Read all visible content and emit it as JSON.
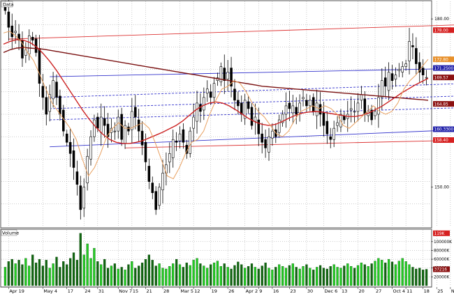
{
  "colors": {
    "background": "#ffffff",
    "grid": "#9a9a9a",
    "candle": "#000000",
    "channel_blue": "#3333cc",
    "channel_red": "#dd3333",
    "ma_long": "#7a1010",
    "ma_mid": "#cc2222",
    "ma_short": "#e8a060",
    "volume_up": "#22cc22",
    "volume_down": "#116611",
    "tag_red": "#d62020",
    "tag_dark": "#8b1010",
    "tag_blue": "#2222aa",
    "tag_orange": "#e8902a"
  },
  "chart_data": [
    {
      "type": "candlestick",
      "title": "",
      "pane_label": "Data",
      "ylim": [
        143,
        183
      ],
      "yticks": [
        {
          "value": 180,
          "label": "180.00"
        },
        {
          "value": 150,
          "label": "150.00"
        }
      ],
      "price_tags": [
        {
          "value": 178.0,
          "label": "178.00",
          "color": "tag_red"
        },
        {
          "value": 172.8,
          "label": "172.80",
          "color": "tag_orange"
        },
        {
          "value": 171.25,
          "label": "171.2500",
          "color": "tag_blue"
        },
        {
          "value": 169.57,
          "label": "169.57",
          "color": "tag_dark"
        },
        {
          "value": 164.85,
          "label": "164.85",
          "color": "tag_dark"
        },
        {
          "value": 160.33,
          "label": "160.3300",
          "color": "tag_blue"
        },
        {
          "value": 158.4,
          "label": "158.40",
          "color": "tag_red"
        }
      ],
      "channels": [
        {
          "name": "upper-red",
          "color": "channel_red",
          "from": [
            1,
            176.4
          ],
          "to": [
            135,
            179.0
          ],
          "dashed": false
        },
        {
          "name": "upper-blue",
          "color": "channel_blue",
          "from": [
            13,
            169.7
          ],
          "to": [
            135,
            171.2
          ],
          "dashed": false
        },
        {
          "name": "mid-upper-dash",
          "color": "channel_blue",
          "from": [
            13,
            166.0
          ],
          "to": [
            135,
            168.5
          ],
          "dashed": true
        },
        {
          "name": "mid-dash",
          "color": "channel_blue",
          "from": [
            13,
            164.0
          ],
          "to": [
            135,
            166.3
          ],
          "dashed": true
        },
        {
          "name": "mid-lower-dash",
          "color": "channel_blue",
          "from": [
            13,
            162.0
          ],
          "to": [
            135,
            164.2
          ],
          "dashed": true
        },
        {
          "name": "lower-blue",
          "color": "channel_blue",
          "from": [
            13,
            157.2
          ],
          "to": [
            135,
            160.3
          ],
          "dashed": false
        },
        {
          "name": "lower-red",
          "color": "channel_red",
          "from": [
            35,
            157.0
          ],
          "to": [
            135,
            158.4
          ],
          "dashed": false
        }
      ],
      "series": [
        {
          "key": "close",
          "values": [
            181.5,
            178.5,
            176.8,
            177.8,
            176.2,
            173.0,
            174.5,
            177.0,
            176.2,
            174.0,
            168.5,
            166.0,
            163.0,
            166.5,
            169.0,
            166.0,
            163.0,
            160.0,
            158.0,
            156.0,
            153.5,
            150.5,
            146.0,
            150.0,
            155.5,
            159.0,
            162.0,
            160.5,
            162.5,
            161.0,
            159.0,
            160.5,
            160.0,
            162.5,
            158.5,
            161.0,
            160.0,
            163.5,
            162.5,
            160.0,
            157.5,
            154.5,
            151.0,
            149.0,
            146.0,
            150.0,
            152.5,
            154.0,
            156.0,
            158.5,
            158.0,
            159.5,
            158.0,
            156.0,
            160.0,
            162.5,
            165.0,
            163.5,
            166.0,
            167.5,
            166.0,
            168.5,
            169.5,
            171.5,
            169.0,
            170.5,
            168.0,
            165.5,
            164.5,
            163.0,
            165.5,
            164.0,
            161.0,
            162.5,
            159.5,
            158.0,
            157.0,
            159.0,
            160.0,
            159.0,
            162.0,
            163.0,
            164.5,
            164.0,
            164.5,
            163.0,
            165.0,
            166.0,
            164.5,
            165.5,
            163.5,
            165.0,
            163.0,
            161.0,
            159.5,
            158.5,
            160.5,
            161.5,
            163.0,
            162.0,
            163.0,
            164.0,
            163.5,
            165.0,
            166.5,
            163.0,
            163.5,
            162.0,
            163.5,
            166.0,
            169.0,
            168.0,
            170.5,
            169.0,
            170.0,
            171.0,
            171.5,
            172.0,
            176.0,
            175.0,
            172.0,
            170.5,
            170.0,
            169.57
          ]
        },
        {
          "key": "ma_long",
          "color": "ma_long",
          "values": [
            174.0,
            174.5,
            174.8,
            174.9,
            174.8,
            174.7,
            174.6,
            174.4,
            174.2,
            174.0,
            173.8,
            173.6,
            173.4,
            173.2,
            173.0,
            172.8,
            172.6,
            172.4,
            172.2,
            172.0,
            171.8,
            171.6,
            171.4,
            171.2,
            171.0,
            170.8,
            170.6,
            170.4,
            170.2,
            170.0,
            169.8,
            169.6,
            169.4,
            169.2,
            169.0,
            168.8,
            168.6,
            168.4,
            168.2,
            168.0,
            167.9,
            167.8,
            167.7,
            167.6,
            167.5,
            167.4,
            167.3,
            167.2,
            167.1,
            167.0,
            166.9,
            166.8,
            166.7,
            166.6,
            166.5,
            166.4,
            166.3,
            166.2,
            166.1,
            166.0,
            165.9,
            165.8,
            165.7,
            165.6,
            165.5
          ]
        },
        {
          "key": "ma_mid",
          "color": "ma_mid",
          "values": [
            175.5,
            176.0,
            176.3,
            176.2,
            175.8,
            175.0,
            173.8,
            172.4,
            170.8,
            169.0,
            167.2,
            165.4,
            163.6,
            162.0,
            160.6,
            159.4,
            158.5,
            158.0,
            157.8,
            157.8,
            158.0,
            158.3,
            158.8,
            159.3,
            159.8,
            160.4,
            161.0,
            161.8,
            162.8,
            163.8,
            164.5,
            165.0,
            165.2,
            165.0,
            164.5,
            163.8,
            163.0,
            162.2,
            161.6,
            161.2,
            161.0,
            161.2,
            161.7,
            162.3,
            162.8,
            163.2,
            163.4,
            163.5,
            163.4,
            163.2,
            163.0,
            162.8,
            162.6,
            162.6,
            162.8,
            163.2,
            163.8,
            164.4,
            165.2,
            166.0,
            166.8,
            167.5,
            168.2,
            168.8,
            169.4
          ]
        },
        {
          "key": "ma_short",
          "color": "ma_short",
          "values": [
            177.5,
            177.8,
            177.0,
            175.8,
            174.0,
            172.5,
            170.0,
            167.5,
            165.0,
            163.5,
            162.0,
            160.5,
            158.5,
            155.0,
            152.0,
            153.5,
            156.0,
            159.0,
            160.5,
            161.5,
            160.5,
            160.5,
            161.0,
            161.5,
            160.5,
            158.0,
            155.0,
            152.0,
            151.5,
            153.5,
            156.0,
            158.0,
            158.5,
            160.0,
            163.0,
            165.5,
            167.5,
            168.0,
            169.0,
            168.5,
            167.0,
            165.0,
            163.5,
            162.5,
            161.0,
            159.5,
            159.0,
            160.0,
            162.0,
            163.5,
            164.0,
            164.5,
            164.0,
            164.5,
            164.0,
            163.0,
            161.0,
            160.5,
            161.5,
            162.5,
            163.5,
            164.5,
            163.5,
            163.0,
            163.5,
            165.0,
            167.5,
            169.0,
            170.0,
            171.5,
            172.8
          ]
        }
      ]
    },
    {
      "type": "bar",
      "title": "",
      "pane_label": "Volume",
      "ylim": [
        0,
        125000
      ],
      "yticks": [
        {
          "value": 100000,
          "label": "100000K"
        },
        {
          "value": 80000,
          "label": "80000K"
        },
        {
          "value": 60000,
          "label": "60000K"
        },
        {
          "value": 40000,
          "label": "40000K"
        },
        {
          "value": 20000,
          "label": "20000K"
        }
      ],
      "price_tags": [
        {
          "value": 119000,
          "label": "119K",
          "color": "tag_red"
        },
        {
          "value": 37216,
          "label": "37216",
          "color": "tag_dark"
        }
      ],
      "values": [
        42000,
        55000,
        60000,
        50000,
        58000,
        48000,
        62000,
        45000,
        70000,
        52000,
        60000,
        45000,
        58000,
        40000,
        50000,
        65000,
        42000,
        55000,
        48000,
        62000,
        75000,
        58000,
        119000,
        70000,
        95000,
        62000,
        85000,
        55000,
        48000,
        60000,
        40000,
        45000,
        50000,
        38000,
        42000,
        36000,
        48000,
        55000,
        40000,
        45000,
        52000,
        60000,
        70000,
        58000,
        45000,
        50000,
        40000,
        38000,
        44000,
        50000,
        60000,
        48000,
        42000,
        52000,
        46000,
        58000,
        62000,
        50000,
        45000,
        40000,
        48000,
        52000,
        56000,
        44000,
        50000,
        42000,
        38000,
        46000,
        54000,
        48000,
        40000,
        44000,
        50000,
        42000,
        38000,
        45000,
        52000,
        40000,
        36000,
        42000,
        48000,
        44000,
        40000,
        46000,
        50000,
        42000,
        38000,
        44000,
        48000,
        40000,
        36000,
        42000,
        46000,
        40000,
        38000,
        44000,
        48000,
        42000,
        40000,
        45000,
        50000,
        44000,
        40000,
        46000,
        52000,
        48000,
        44000,
        50000,
        56000,
        62000,
        58000,
        52000,
        60000,
        54000,
        48000,
        56000,
        62000,
        55000,
        48000,
        42000,
        38000,
        40000,
        36000,
        37216
      ]
    }
  ],
  "x_axis": {
    "labels": [
      "Apr 19",
      "May 4",
      "17",
      "24",
      "31",
      "Nov 7",
      "15",
      "21",
      "28",
      "Mar 5",
      "12",
      "19",
      "26",
      "Apr 2",
      "9",
      "16",
      "23",
      "30",
      "Dec 6",
      "13",
      "20",
      "27",
      "Oct 4",
      "11",
      "18",
      "25",
      "Nov 1",
      "15"
    ],
    "positions": [
      1,
      11,
      18,
      23,
      27,
      33,
      37,
      41,
      46,
      51,
      55,
      60,
      65,
      70,
      74,
      78,
      83,
      88,
      93,
      98,
      103,
      108,
      113,
      117,
      122,
      126,
      130,
      135
    ]
  }
}
